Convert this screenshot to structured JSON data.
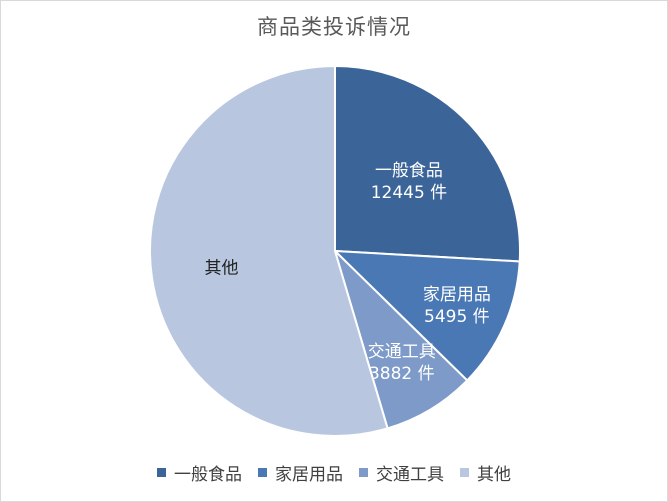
{
  "chart_data": {
    "type": "pie",
    "title": "商品类投诉情况",
    "slices": [
      {
        "label": "一般食品",
        "value": 12445,
        "value_label": "12445 件",
        "color": "#3b6499"
      },
      {
        "label": "家居用品",
        "value": 5495,
        "value_label": "5495 件",
        "color": "#4a78b4"
      },
      {
        "label": "交通工具",
        "value": 3882,
        "value_label": "3882 件",
        "color": "#7e9ac9"
      },
      {
        "label": "其他",
        "value": 26230,
        "value_label": "",
        "color": "#b8c7df"
      }
    ],
    "legend_position": "bottom",
    "start_angle_deg": 0,
    "direction": "clockwise"
  }
}
